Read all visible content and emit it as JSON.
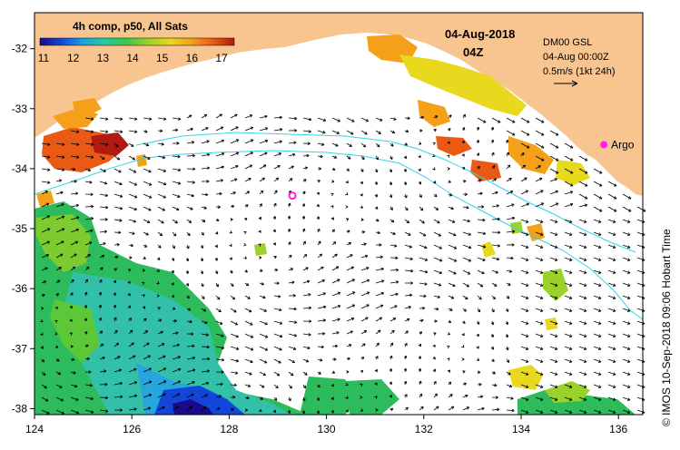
{
  "colorbar": {
    "title": "4h comp, p50, All Sats",
    "ticks": [
      "11",
      "12",
      "13",
      "14",
      "15",
      "16",
      "17"
    ],
    "colors": [
      "#1a0b8c",
      "#1246d8",
      "#1aa0e0",
      "#28c8a8",
      "#38c848",
      "#9ad22a",
      "#e8d81e",
      "#f4a018",
      "#ea5a14",
      "#b01a10"
    ]
  },
  "date_label": "04-Aug-2018",
  "time_label": "04Z",
  "legend": {
    "model": "DM00 GSL",
    "valid": "04-Aug 00:00Z",
    "scale": "0.5m/s (1kt 24h)"
  },
  "argo_label": "Argo",
  "credit": "© IMOS 10-Sep-2018 09:06 Hobart Time",
  "axes": {
    "x_ticks": [
      "124",
      "126",
      "128",
      "130",
      "132",
      "134",
      "136"
    ],
    "y_ticks": [
      "-32",
      "-33",
      "-34",
      "-35",
      "-36",
      "-37",
      "-38"
    ],
    "lon_range": [
      124,
      136.5
    ],
    "lat_range": [
      -38.1,
      -31.4
    ]
  },
  "argo_floats": [
    {
      "lon": 135.7,
      "lat": -33.6
    },
    {
      "lon": 129.3,
      "lat": -34.45
    }
  ],
  "colors": {
    "land": "#f8c490",
    "ocean": "#ffffff",
    "contour": "#33d6e8",
    "argo": "#ff22dd",
    "arrow": "#000000"
  }
}
